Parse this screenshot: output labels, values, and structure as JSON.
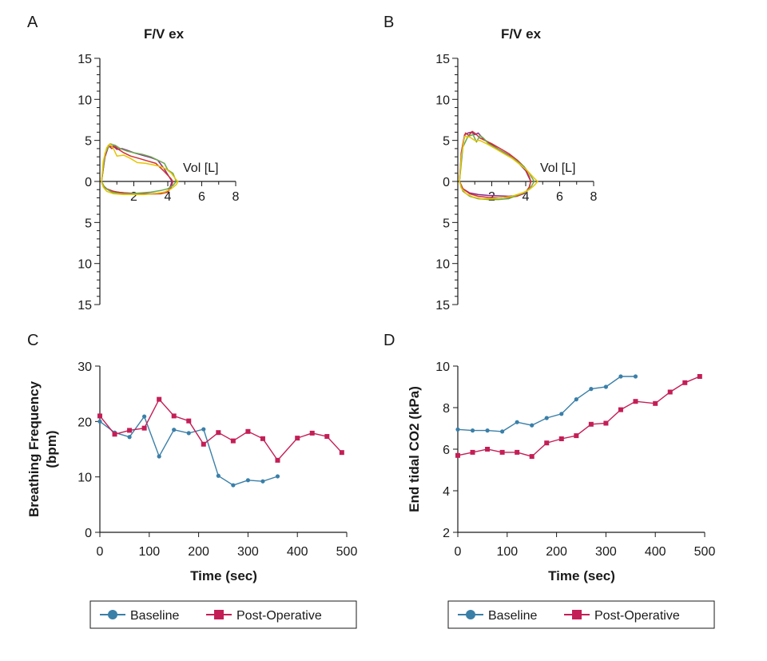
{
  "colors": {
    "baseline": "#3a7fa8",
    "postop": "#c41e57",
    "axis": "#1a1a1a",
    "fv_green": "#6aa84f",
    "fv_yellow": "#e8c400"
  },
  "chart_data": [
    {
      "panel": "A",
      "type": "line",
      "title": "F/V ex",
      "xlabel": "Vol [L]",
      "xticks": [
        "2",
        "4",
        "6",
        "8"
      ],
      "xlim": [
        0,
        8
      ],
      "yticks_up": [
        "15",
        "10",
        "5",
        "0"
      ],
      "yticks_down": [
        "5",
        "10",
        "15"
      ],
      "ylim": [
        -15,
        15
      ],
      "series": [
        {
          "name": "purple",
          "color": "#8b2b8c",
          "x": [
            0.1,
            0.3,
            0.5,
            0.8,
            1.0,
            1.3,
            1.6,
            2.0,
            2.5,
            3.0,
            3.4,
            3.8,
            4.1,
            4.25,
            4.15,
            4.0,
            3.6,
            3.0,
            2.5,
            2.0,
            1.5,
            1.0,
            0.6,
            0.3,
            0.15,
            0.1
          ],
          "y": [
            0,
            3.0,
            4.2,
            4.3,
            3.9,
            4.0,
            3.8,
            3.5,
            3.2,
            2.9,
            2.6,
            1.5,
            0.5,
            0,
            -0.6,
            -1.2,
            -1.4,
            -1.5,
            -1.5,
            -1.45,
            -1.4,
            -1.3,
            -1.1,
            -0.8,
            -0.4,
            0
          ]
        },
        {
          "name": "red",
          "color": "#d23030",
          "x": [
            0.1,
            0.3,
            0.5,
            0.7,
            0.9,
            1.1,
            1.4,
            1.8,
            2.3,
            2.8,
            3.3,
            3.8,
            4.2,
            4.3,
            4.2,
            4.0,
            3.6,
            3.0,
            2.4,
            1.8,
            1.2,
            0.8,
            0.4,
            0.2,
            0.1
          ],
          "y": [
            0,
            3.2,
            4.4,
            4.0,
            4.3,
            3.9,
            3.5,
            3.1,
            2.8,
            2.5,
            2.2,
            1.2,
            0.3,
            0,
            -0.7,
            -1.3,
            -1.5,
            -1.55,
            -1.5,
            -1.45,
            -1.35,
            -1.2,
            -0.9,
            -0.5,
            0
          ]
        },
        {
          "name": "green",
          "color": "#6aa84f",
          "x": [
            0.1,
            0.3,
            0.6,
            0.9,
            1.2,
            1.6,
            2.0,
            2.5,
            3.0,
            3.4,
            3.8,
            4.0,
            4.3,
            4.5,
            4.3,
            4.0,
            3.6,
            3.0,
            2.4,
            1.8,
            1.2,
            0.7,
            0.3,
            0.1
          ],
          "y": [
            0,
            3.4,
            4.6,
            4.4,
            4.0,
            3.7,
            3.5,
            3.3,
            3.0,
            2.6,
            2.2,
            1.4,
            1.0,
            0,
            -0.5,
            -0.9,
            -1.1,
            -1.3,
            -1.4,
            -1.5,
            -1.5,
            -1.3,
            -0.8,
            0
          ]
        },
        {
          "name": "yellow",
          "color": "#e8c400",
          "x": [
            0.1,
            0.2,
            0.4,
            0.6,
            0.8,
            1.0,
            1.4,
            1.8,
            2.2,
            2.7,
            3.2,
            3.6,
            3.9,
            4.2,
            4.5,
            4.6,
            4.5,
            4.2,
            3.8,
            3.2,
            2.6,
            2.0,
            1.4,
            0.8,
            0.4,
            0.2,
            0.1
          ],
          "y": [
            0,
            2.5,
            4.1,
            4.6,
            4.0,
            3.1,
            3.2,
            2.8,
            2.3,
            2.2,
            2.0,
            1.8,
            1.5,
            1.0,
            0.2,
            0,
            -0.4,
            -0.9,
            -1.3,
            -1.5,
            -1.6,
            -1.6,
            -1.6,
            -1.5,
            -1.2,
            -0.7,
            0
          ]
        }
      ]
    },
    {
      "panel": "B",
      "type": "line",
      "title": "F/V ex",
      "xlabel": "Vol [L]",
      "xticks": [
        "2",
        "4",
        "6",
        "8"
      ],
      "xlim": [
        0,
        8
      ],
      "yticks_up": [
        "15",
        "10",
        "5",
        "0"
      ],
      "yticks_down": [
        "5",
        "10",
        "15"
      ],
      "ylim": [
        -15,
        15
      ],
      "series": [
        {
          "name": "purple",
          "color": "#8b2b8c",
          "x": [
            0.1,
            0.2,
            0.4,
            0.6,
            0.8,
            1.0,
            1.2,
            1.5,
            1.9,
            2.4,
            3.0,
            3.5,
            4.0,
            4.3,
            4.2,
            4.0,
            3.6,
            3.0,
            2.4,
            1.8,
            1.2,
            0.7,
            0.3,
            0.1
          ],
          "y": [
            0,
            3.5,
            5.7,
            5.9,
            6.0,
            5.7,
            5.9,
            5.2,
            4.6,
            3.9,
            3.2,
            2.4,
            1.3,
            0,
            -0.8,
            -1.4,
            -1.7,
            -1.8,
            -1.75,
            -1.7,
            -1.6,
            -1.4,
            -0.9,
            0
          ]
        },
        {
          "name": "red",
          "color": "#d23030",
          "x": [
            0.1,
            0.25,
            0.45,
            0.65,
            0.85,
            1.05,
            1.3,
            1.6,
            2.0,
            2.5,
            3.0,
            3.5,
            3.9,
            4.2,
            4.3,
            4.2,
            4.0,
            3.5,
            3.0,
            2.4,
            1.8,
            1.2,
            0.7,
            0.3,
            0.1
          ],
          "y": [
            0,
            4.0,
            5.9,
            5.6,
            6.1,
            5.8,
            5.3,
            5.0,
            4.6,
            4.0,
            3.4,
            2.6,
            1.8,
            0.6,
            0,
            -0.7,
            -1.3,
            -1.8,
            -1.95,
            -2.0,
            -1.95,
            -1.8,
            -1.5,
            -0.9,
            0
          ]
        },
        {
          "name": "green",
          "color": "#6aa84f",
          "x": [
            0.1,
            0.3,
            0.6,
            0.9,
            1.1,
            1.3,
            1.5,
            1.8,
            2.3,
            2.8,
            3.4,
            3.9,
            4.2,
            4.5,
            4.3,
            4.0,
            3.6,
            3.0,
            2.4,
            1.8,
            1.2,
            0.7,
            0.3,
            0.1
          ],
          "y": [
            0,
            4.2,
            5.5,
            5.7,
            4.8,
            5.6,
            5.3,
            4.6,
            4.0,
            3.4,
            2.6,
            1.8,
            1.0,
            0,
            -0.7,
            -1.3,
            -1.6,
            -2.1,
            -2.2,
            -2.2,
            -2.1,
            -1.8,
            -1.2,
            0
          ]
        },
        {
          "name": "yellow",
          "color": "#e8c400",
          "x": [
            0.1,
            0.2,
            0.4,
            0.7,
            1.0,
            1.3,
            1.7,
            2.2,
            2.7,
            3.2,
            3.7,
            4.1,
            4.5,
            4.7,
            4.5,
            4.2,
            3.8,
            3.2,
            2.6,
            2.0,
            1.4,
            0.9,
            0.5,
            0.2,
            0.1
          ],
          "y": [
            0,
            3.0,
            5.5,
            5.4,
            5.0,
            5.0,
            4.6,
            4.0,
            3.4,
            2.8,
            2.0,
            1.3,
            0.4,
            0,
            -0.5,
            -1.0,
            -1.4,
            -1.8,
            -2.0,
            -2.1,
            -2.1,
            -1.9,
            -1.5,
            -0.8,
            0
          ]
        }
      ]
    },
    {
      "panel": "C",
      "type": "line",
      "title": "",
      "xlabel": "Time (sec)",
      "ylabel_line1": "Breathing Frequency",
      "ylabel_line2": "(bpm)",
      "xlim": [
        0,
        500
      ],
      "ylim": [
        0,
        30
      ],
      "xticks": [
        "0",
        "100",
        "200",
        "300",
        "400",
        "500"
      ],
      "yticks": [
        "0",
        "10",
        "20",
        "30"
      ],
      "series": [
        {
          "name": "Baseline",
          "marker": "circle",
          "x": [
            0,
            30,
            60,
            90,
            120,
            150,
            180,
            210,
            240,
            270,
            300,
            330,
            360
          ],
          "y": [
            20.0,
            18.0,
            17.2,
            20.9,
            13.7,
            18.5,
            17.9,
            18.6,
            10.2,
            8.5,
            9.4,
            9.2,
            10.1
          ]
        },
        {
          "name": "Post-Operative",
          "marker": "square",
          "x": [
            0,
            30,
            60,
            90,
            120,
            150,
            180,
            210,
            240,
            270,
            300,
            330,
            360,
            400,
            430,
            460,
            490
          ],
          "y": [
            21.0,
            17.7,
            18.4,
            18.8,
            24.0,
            21.0,
            20.1,
            15.9,
            18.0,
            16.5,
            18.2,
            16.9,
            13.0,
            17.0,
            17.9,
            17.3,
            14.4
          ]
        }
      ]
    },
    {
      "panel": "D",
      "type": "line",
      "title": "",
      "xlabel": "Time (sec)",
      "ylabel": "End tidal CO2 (kPa)",
      "xlim": [
        0,
        500
      ],
      "ylim": [
        2,
        10
      ],
      "xticks": [
        "0",
        "100",
        "200",
        "300",
        "400",
        "500"
      ],
      "yticks": [
        "2",
        "4",
        "6",
        "8",
        "10"
      ],
      "series": [
        {
          "name": "Baseline",
          "marker": "circle",
          "x": [
            0,
            30,
            60,
            90,
            120,
            150,
            180,
            210,
            240,
            270,
            300,
            330,
            360
          ],
          "y": [
            6.95,
            6.9,
            6.9,
            6.85,
            7.3,
            7.15,
            7.5,
            7.7,
            8.4,
            8.9,
            9.0,
            9.5,
            9.5
          ]
        },
        {
          "name": "Post-Operative",
          "marker": "square",
          "x": [
            0,
            30,
            60,
            90,
            120,
            150,
            180,
            210,
            240,
            270,
            300,
            330,
            360,
            400,
            430,
            460,
            490
          ],
          "y": [
            5.7,
            5.85,
            6.0,
            5.85,
            5.85,
            5.65,
            6.3,
            6.5,
            6.65,
            7.2,
            7.25,
            7.9,
            8.3,
            8.2,
            8.75,
            9.2,
            9.5
          ]
        }
      ]
    }
  ],
  "legend": {
    "baseline": "Baseline",
    "postop": "Post-Operative"
  }
}
